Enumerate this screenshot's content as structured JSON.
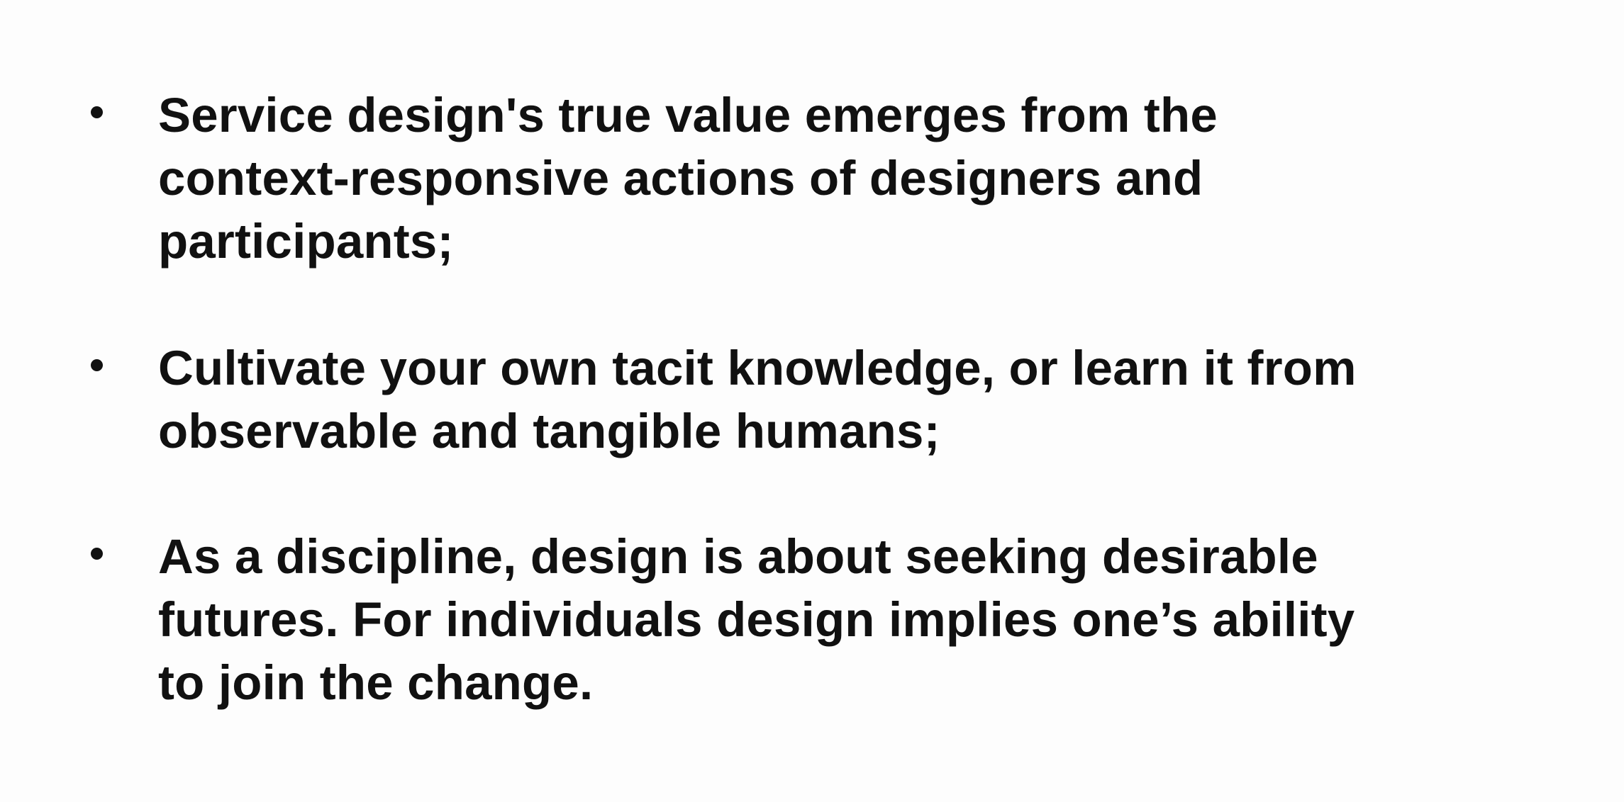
{
  "slide": {
    "bullets": [
      {
        "text": "Service design's true value emerges from the\ncontext-responsive actions of designers and\nparticipants;"
      },
      {
        "text": "Cultivate your own tacit knowledge, or learn it from\nobservable and tangible humans;"
      },
      {
        "text": "As a discipline, design is about seeking desirable\nfutures. For individuals design implies one’s ability\nto join the change."
      }
    ]
  }
}
